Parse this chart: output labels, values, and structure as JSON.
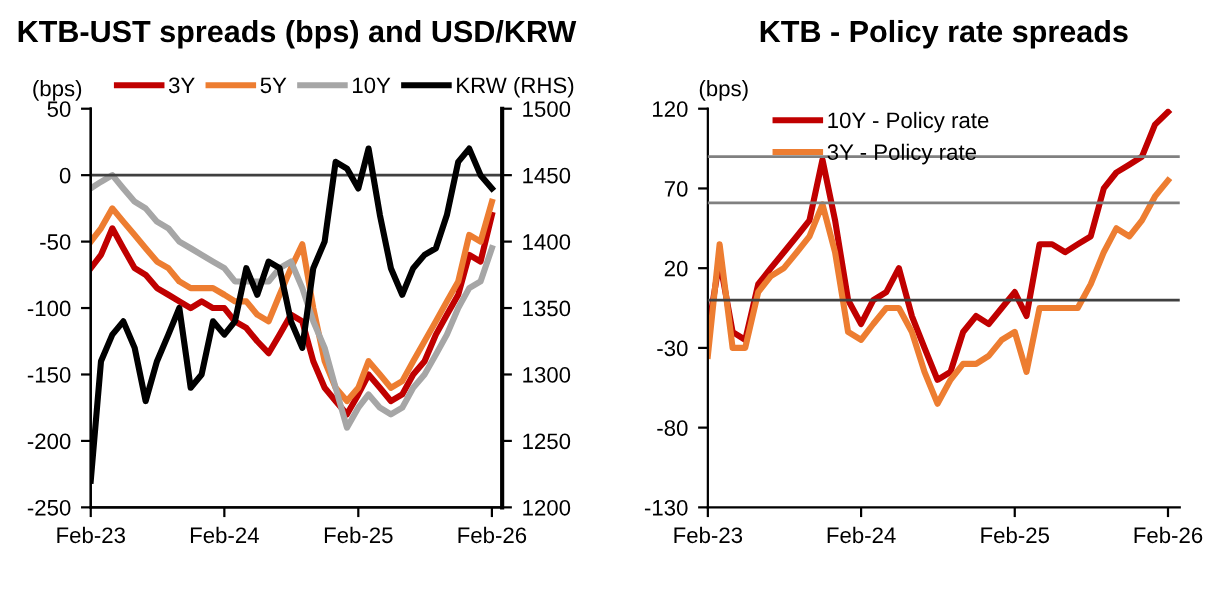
{
  "chart_data": [
    {
      "type": "line",
      "title": "KTB-UST spreads (bps) and USD/KRW",
      "ylabel": "(bps)",
      "legend": "top",
      "x": [
        "2023-02",
        "2023-03",
        "2023-04",
        "2023-05",
        "2023-06",
        "2023-07",
        "2023-08",
        "2023-09",
        "2023-10",
        "2023-11",
        "2023-12",
        "2024-01",
        "2024-02",
        "2024-03",
        "2024-04",
        "2024-05",
        "2024-06",
        "2024-07",
        "2024-08",
        "2024-09",
        "2024-10",
        "2024-11",
        "2024-12",
        "2025-01",
        "2025-02",
        "2025-03",
        "2025-04",
        "2025-05",
        "2025-06",
        "2025-07",
        "2025-08",
        "2025-09",
        "2025-10",
        "2025-11",
        "2025-12",
        "2026-01",
        "2026-02"
      ],
      "series": [
        {
          "name": "3Y",
          "color": "#c00000",
          "values": [
            -70,
            -60,
            -40,
            -55,
            -70,
            -75,
            -85,
            -90,
            -95,
            -100,
            -95,
            -100,
            -100,
            -110,
            -115,
            -125,
            -134,
            -120,
            -105,
            -110,
            -140,
            -160,
            -170,
            -180,
            -165,
            -150,
            -160,
            -170,
            -165,
            -150,
            -140,
            -120,
            -105,
            -90,
            -60,
            -65,
            -30
          ]
        },
        {
          "name": "5Y",
          "color": "#ed7d31",
          "values": [
            -50,
            -40,
            -25,
            -35,
            -45,
            -55,
            -65,
            -70,
            -80,
            -85,
            -85,
            -85,
            -90,
            -95,
            -95,
            -105,
            -110,
            -90,
            -70,
            -52,
            -100,
            -140,
            -160,
            -170,
            -160,
            -140,
            -150,
            -160,
            -155,
            -140,
            -125,
            -110,
            -95,
            -80,
            -45,
            -50,
            -20
          ]
        },
        {
          "name": "10Y",
          "color": "#a6a6a6",
          "values": [
            -10,
            -5,
            0,
            -10,
            -20,
            -25,
            -35,
            -40,
            -50,
            -55,
            -60,
            -65,
            -70,
            -80,
            -80,
            -80,
            -80,
            -70,
            -65,
            -85,
            -110,
            -130,
            -160,
            -190,
            -175,
            -165,
            -175,
            -180,
            -175,
            -160,
            -150,
            -135,
            -120,
            -100,
            -85,
            -80,
            -55
          ]
        },
        {
          "name": "KRW (RHS)",
          "color": "#000000",
          "axis": "y2",
          "values": [
            1220,
            1310,
            1330,
            1340,
            1320,
            1280,
            1310,
            1330,
            1350,
            1290,
            1300,
            1340,
            1330,
            1340,
            1380,
            1360,
            1385,
            1380,
            1340,
            1320,
            1380,
            1400,
            1460,
            1455,
            1440,
            1470,
            1420,
            1380,
            1360,
            1380,
            1390,
            1395,
            1420,
            1460,
            1470,
            1450,
            1440
          ]
        }
      ],
      "xlim": [
        "2023-02",
        "2026-03"
      ],
      "xticks": [
        {
          "value": "2023-02",
          "label": "Feb-23"
        },
        {
          "value": "2024-02",
          "label": "Feb-24"
        },
        {
          "value": "2025-02",
          "label": "Feb-25"
        },
        {
          "value": "2026-02",
          "label": "Feb-26"
        }
      ],
      "ylim": [
        -250,
        50
      ],
      "yticks": [
        -250,
        -200,
        -150,
        -100,
        -50,
        0,
        50
      ],
      "y2lim": [
        1200,
        1500
      ],
      "y2ticks": [
        1200,
        1250,
        1300,
        1350,
        1400,
        1450,
        1500
      ],
      "ref_lines": [
        {
          "axis": "y",
          "value": 0,
          "color": "#404040"
        }
      ]
    },
    {
      "type": "line",
      "title": "KTB - Policy rate spreads",
      "ylabel": "(bps)",
      "legend": "top left",
      "x": [
        "2023-02",
        "2023-03",
        "2023-04",
        "2023-05",
        "2023-06",
        "2023-07",
        "2023-08",
        "2023-09",
        "2023-10",
        "2023-11",
        "2023-12",
        "2024-01",
        "2024-02",
        "2024-03",
        "2024-04",
        "2024-05",
        "2024-06",
        "2024-07",
        "2024-08",
        "2024-09",
        "2024-10",
        "2024-11",
        "2024-12",
        "2025-01",
        "2025-02",
        "2025-03",
        "2025-04",
        "2025-05",
        "2025-06",
        "2025-07",
        "2025-08",
        "2025-09",
        "2025-10",
        "2025-11",
        "2025-12",
        "2026-01",
        "2026-02"
      ],
      "series": [
        {
          "name": "10Y - Policy rate",
          "color": "#c00000",
          "values": [
            -20,
            25,
            -20,
            -25,
            10,
            20,
            30,
            40,
            50,
            88,
            50,
            0,
            -15,
            0,
            5,
            20,
            -10,
            -30,
            -50,
            -45,
            -20,
            -10,
            -15,
            -5,
            5,
            -10,
            35,
            35,
            30,
            35,
            40,
            70,
            80,
            85,
            90,
            110,
            118
          ]
        },
        {
          "name": "3Y - Policy rate",
          "color": "#ed7d31",
          "values": [
            -35,
            35,
            -30,
            -30,
            5,
            15,
            20,
            30,
            40,
            60,
            30,
            -20,
            -25,
            -15,
            -5,
            -5,
            -20,
            -45,
            -65,
            -50,
            -40,
            -40,
            -35,
            -25,
            -20,
            -45,
            -5,
            -5,
            -5,
            -5,
            10,
            30,
            45,
            40,
            50,
            65,
            75
          ]
        }
      ],
      "xlim": [
        "2023-02",
        "2026-03"
      ],
      "xticks": [
        {
          "value": "2023-02",
          "label": "Feb-23"
        },
        {
          "value": "2024-02",
          "label": "Feb-24"
        },
        {
          "value": "2025-02",
          "label": "Feb-25"
        },
        {
          "value": "2026-02",
          "label": "Feb-26"
        }
      ],
      "ylim": [
        -130,
        120
      ],
      "yticks": [
        -130,
        -80,
        -30,
        20,
        70,
        120
      ],
      "ref_lines": [
        {
          "axis": "y",
          "value": 0,
          "color": "#404040"
        },
        {
          "axis": "y",
          "value": 90,
          "color": "#808080"
        },
        {
          "axis": "y",
          "value": 61,
          "color": "#808080"
        }
      ]
    }
  ]
}
